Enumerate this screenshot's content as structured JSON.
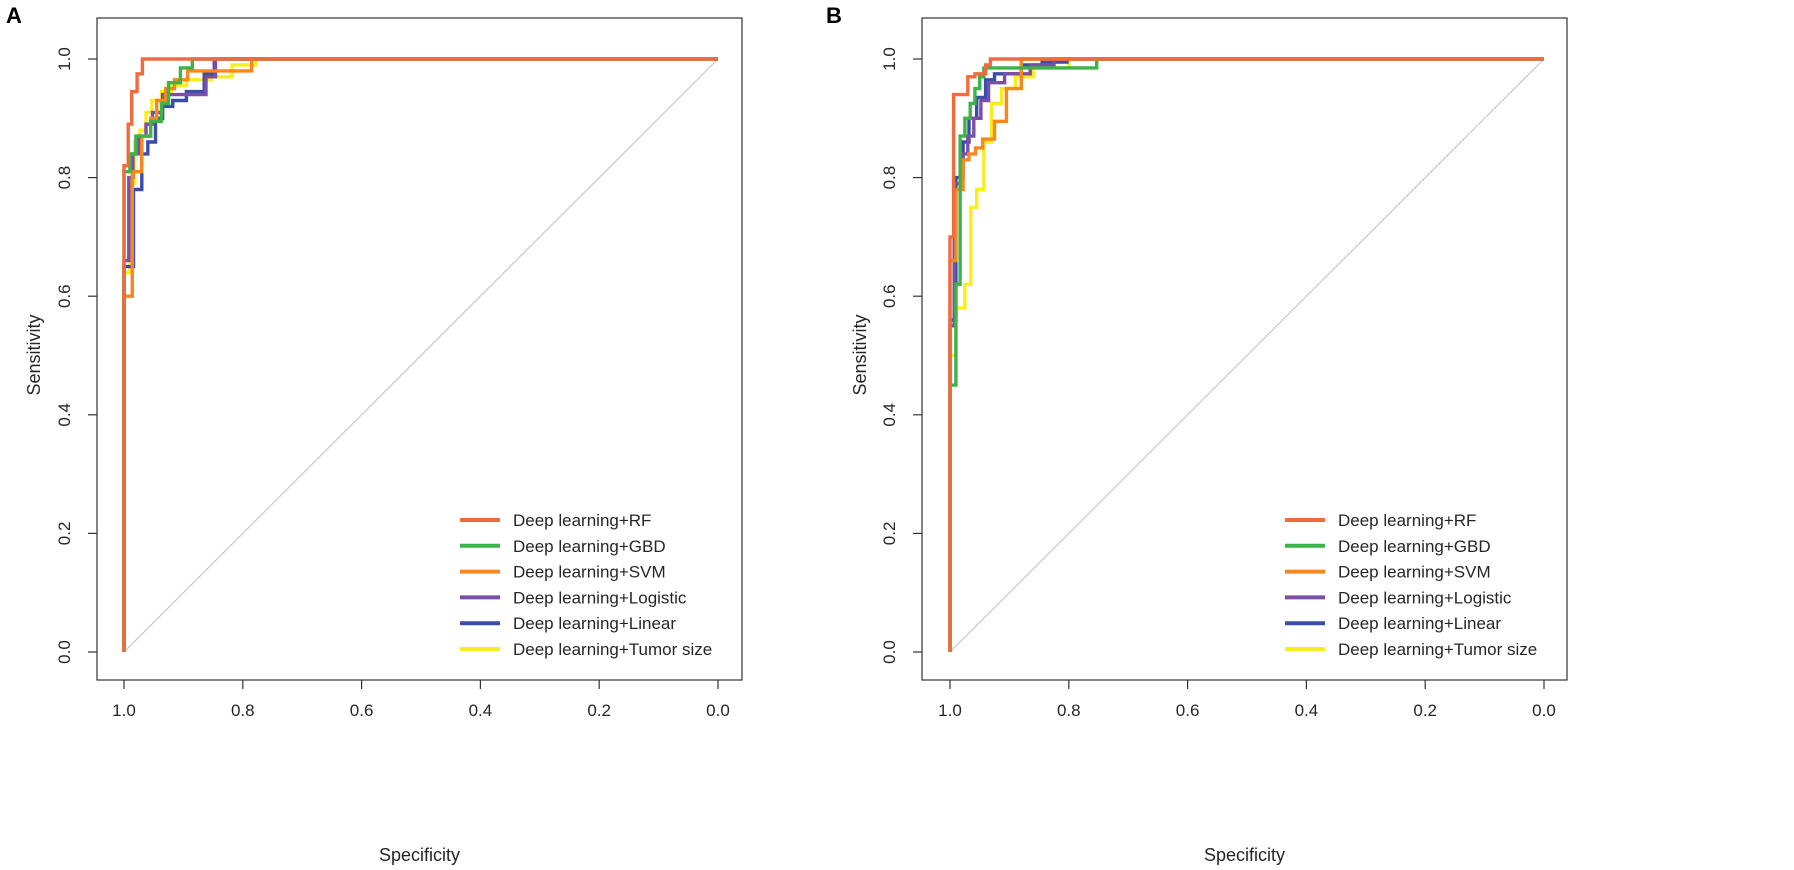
{
  "figure": {
    "legend_position": "bottom-right"
  },
  "chart_data": [
    {
      "type": "line",
      "panel_label": "A",
      "xlabel": "Specificity",
      "ylabel": "Sensitivity",
      "xlim": [
        1.0,
        0.0
      ],
      "ylim": [
        0.0,
        1.0
      ],
      "x_reversed": true,
      "xticks": [
        "1.0",
        "0.8",
        "0.6",
        "0.4",
        "0.2",
        "0.0"
      ],
      "yticks": [
        "0.0",
        "0.2",
        "0.4",
        "0.6",
        "0.8",
        "1.0"
      ],
      "diagonal": {
        "color": "#c8c8c8"
      },
      "series": [
        {
          "name": "Deep learning+RF",
          "color": "#f26b3f",
          "x": [
            1,
            1,
            0.993,
            0.993,
            0.987,
            0.987,
            0.978,
            0.978,
            0.969,
            0.969,
            0
          ],
          "y": [
            0,
            0.82,
            0.82,
            0.89,
            0.89,
            0.945,
            0.945,
            0.975,
            0.975,
            1.0,
            1.0
          ]
        },
        {
          "name": "Deep learning+GBD",
          "color": "#3db34a",
          "x": [
            1,
            1,
            0.99,
            0.99,
            0.98,
            0.98,
            0.955,
            0.955,
            0.937,
            0.937,
            0.925,
            0.925,
            0.905,
            0.905,
            0.885,
            0.885,
            0
          ],
          "y": [
            0,
            0.81,
            0.81,
            0.84,
            0.84,
            0.87,
            0.87,
            0.895,
            0.895,
            0.925,
            0.925,
            0.96,
            0.96,
            0.985,
            0.985,
            1.0,
            1.0
          ]
        },
        {
          "name": "Deep learning+SVM",
          "color": "#f7881f",
          "x": [
            1,
            1,
            0.986,
            0.986,
            0.97,
            0.97,
            0.955,
            0.955,
            0.945,
            0.945,
            0.93,
            0.93,
            0.915,
            0.915,
            0.893,
            0.893,
            0.785,
            0.785,
            0
          ],
          "y": [
            0,
            0.6,
            0.6,
            0.81,
            0.81,
            0.87,
            0.87,
            0.9,
            0.9,
            0.93,
            0.93,
            0.95,
            0.95,
            0.965,
            0.965,
            0.98,
            0.98,
            1.0,
            1.0
          ]
        },
        {
          "name": "Deep learning+Logistic",
          "color": "#7b4fa6",
          "x": [
            1,
            1,
            0.992,
            0.992,
            0.985,
            0.985,
            0.975,
            0.975,
            0.963,
            0.963,
            0.952,
            0.952,
            0.935,
            0.935,
            0.862,
            0.862,
            0.846,
            0.846,
            0
          ],
          "y": [
            0,
            0.66,
            0.66,
            0.8,
            0.8,
            0.84,
            0.84,
            0.87,
            0.87,
            0.89,
            0.89,
            0.91,
            0.91,
            0.94,
            0.94,
            0.97,
            0.97,
            1.0,
            1.0
          ]
        },
        {
          "name": "Deep learning+Linear",
          "color": "#3a4dab",
          "x": [
            1,
            1,
            0.984,
            0.984,
            0.97,
            0.97,
            0.96,
            0.96,
            0.947,
            0.947,
            0.935,
            0.935,
            0.918,
            0.918,
            0.895,
            0.895,
            0.865,
            0.865,
            0.848,
            0.848,
            0.8,
            0.8,
            0
          ],
          "y": [
            0,
            0.65,
            0.65,
            0.78,
            0.78,
            0.84,
            0.84,
            0.86,
            0.86,
            0.9,
            0.9,
            0.92,
            0.92,
            0.93,
            0.93,
            0.945,
            0.945,
            0.975,
            0.975,
            1.0,
            1.0,
            1.0,
            1.0
          ]
        },
        {
          "name": "Deep learning+Tumor size",
          "color": "#f9ee1c",
          "x": [
            1,
            1,
            0.99,
            0.99,
            0.982,
            0.982,
            0.973,
            0.973,
            0.963,
            0.963,
            0.953,
            0.953,
            0.937,
            0.937,
            0.92,
            0.92,
            0.895,
            0.895,
            0.853,
            0.853,
            0.818,
            0.818,
            0.778,
            0.778,
            0
          ],
          "y": [
            0,
            0.64,
            0.64,
            0.79,
            0.79,
            0.86,
            0.86,
            0.88,
            0.88,
            0.91,
            0.91,
            0.93,
            0.93,
            0.945,
            0.945,
            0.955,
            0.955,
            0.965,
            0.965,
            0.97,
            0.97,
            0.99,
            0.99,
            1.0,
            1.0
          ]
        }
      ]
    },
    {
      "type": "line",
      "panel_label": "B",
      "xlabel": "Specificity",
      "ylabel": "Sensitivity",
      "xlim": [
        1.0,
        0.0
      ],
      "ylim": [
        0.0,
        1.0
      ],
      "x_reversed": true,
      "xticks": [
        "1.0",
        "0.8",
        "0.6",
        "0.4",
        "0.2",
        "0.0"
      ],
      "yticks": [
        "0.0",
        "0.2",
        "0.4",
        "0.6",
        "0.8",
        "1.0"
      ],
      "diagonal": {
        "color": "#c8c8c8"
      },
      "series": [
        {
          "name": "Deep learning+RF",
          "color": "#f26b3f",
          "x": [
            1,
            1,
            0.994,
            0.994,
            0.97,
            0.97,
            0.958,
            0.958,
            0.94,
            0.94,
            0.932,
            0.932,
            0
          ],
          "y": [
            0,
            0.7,
            0.7,
            0.94,
            0.94,
            0.97,
            0.97,
            0.975,
            0.975,
            0.99,
            0.99,
            1.0,
            1.0
          ]
        },
        {
          "name": "Deep learning+GBD",
          "color": "#3db34a",
          "x": [
            1,
            1,
            0.99,
            0.99,
            0.983,
            0.983,
            0.975,
            0.975,
            0.966,
            0.966,
            0.958,
            0.958,
            0.95,
            0.95,
            0.943,
            0.943,
            0.753,
            0.753,
            0
          ],
          "y": [
            0,
            0.45,
            0.45,
            0.62,
            0.62,
            0.87,
            0.87,
            0.9,
            0.9,
            0.925,
            0.925,
            0.95,
            0.95,
            0.97,
            0.97,
            0.985,
            0.985,
            1.0,
            1.0
          ]
        },
        {
          "name": "Deep learning+SVM",
          "color": "#f7881f",
          "x": [
            1,
            1,
            0.99,
            0.99,
            0.978,
            0.978,
            0.968,
            0.968,
            0.957,
            0.957,
            0.945,
            0.945,
            0.925,
            0.925,
            0.905,
            0.905,
            0.88,
            0.88,
            0
          ],
          "y": [
            0,
            0.66,
            0.66,
            0.78,
            0.78,
            0.83,
            0.83,
            0.84,
            0.84,
            0.85,
            0.85,
            0.865,
            0.865,
            0.895,
            0.895,
            0.95,
            0.95,
            1.0,
            1.0
          ]
        },
        {
          "name": "Deep learning+Logistic",
          "color": "#7b4fa6",
          "x": [
            1,
            1,
            0.993,
            0.993,
            0.98,
            0.98,
            0.97,
            0.97,
            0.96,
            0.96,
            0.948,
            0.948,
            0.935,
            0.935,
            0.908,
            0.908,
            0.865,
            0.865,
            0.825,
            0.825,
            0
          ],
          "y": [
            0,
            0.55,
            0.55,
            0.79,
            0.79,
            0.84,
            0.84,
            0.87,
            0.87,
            0.9,
            0.9,
            0.93,
            0.93,
            0.96,
            0.96,
            0.975,
            0.975,
            0.99,
            0.99,
            1.0,
            1.0
          ]
        },
        {
          "name": "Deep learning+Linear",
          "color": "#3a4dab",
          "x": [
            1,
            1,
            0.99,
            0.99,
            0.978,
            0.978,
            0.968,
            0.968,
            0.955,
            0.955,
            0.94,
            0.94,
            0.925,
            0.925,
            0.88,
            0.88,
            0.845,
            0.845,
            0.803,
            0.803,
            0
          ],
          "y": [
            0,
            0.56,
            0.56,
            0.8,
            0.8,
            0.86,
            0.86,
            0.9,
            0.9,
            0.935,
            0.935,
            0.965,
            0.965,
            0.975,
            0.975,
            0.99,
            0.99,
            0.995,
            0.995,
            1.0,
            1.0
          ]
        },
        {
          "name": "Deep learning+Tumor size",
          "color": "#f9ee1c",
          "x": [
            1,
            1,
            0.99,
            0.99,
            0.975,
            0.975,
            0.965,
            0.965,
            0.955,
            0.955,
            0.943,
            0.943,
            0.93,
            0.93,
            0.913,
            0.913,
            0.89,
            0.89,
            0.86,
            0.86,
            0.8,
            0.8,
            0
          ],
          "y": [
            0,
            0.5,
            0.5,
            0.58,
            0.58,
            0.62,
            0.62,
            0.75,
            0.75,
            0.78,
            0.78,
            0.86,
            0.86,
            0.925,
            0.925,
            0.95,
            0.95,
            0.97,
            0.97,
            0.985,
            0.985,
            1.0,
            1.0
          ]
        }
      ]
    }
  ]
}
